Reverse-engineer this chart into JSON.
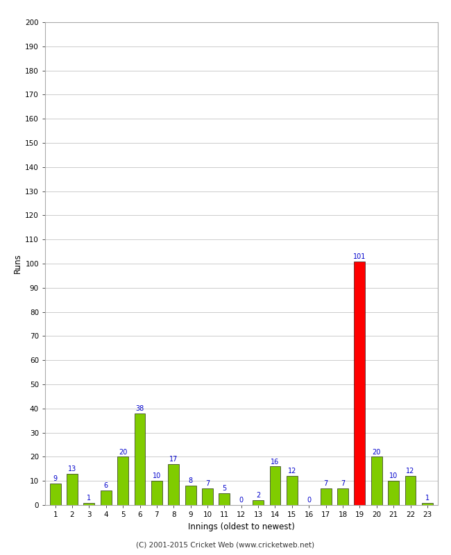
{
  "xlabel": "Innings (oldest to newest)",
  "ylabel": "Runs",
  "categories": [
    1,
    2,
    3,
    4,
    5,
    6,
    7,
    8,
    9,
    10,
    11,
    12,
    13,
    14,
    15,
    16,
    17,
    18,
    19,
    20,
    21,
    22,
    23
  ],
  "values": [
    9,
    13,
    1,
    6,
    20,
    38,
    10,
    17,
    8,
    7,
    5,
    0,
    2,
    16,
    12,
    0,
    7,
    7,
    101,
    20,
    10,
    12,
    1
  ],
  "colors": [
    "#80cc00",
    "#80cc00",
    "#80cc00",
    "#80cc00",
    "#80cc00",
    "#80cc00",
    "#80cc00",
    "#80cc00",
    "#80cc00",
    "#80cc00",
    "#80cc00",
    "#80cc00",
    "#80cc00",
    "#80cc00",
    "#80cc00",
    "#80cc00",
    "#80cc00",
    "#80cc00",
    "#ff0000",
    "#80cc00",
    "#80cc00",
    "#80cc00",
    "#80cc00"
  ],
  "ylim": [
    0,
    200
  ],
  "yticks": [
    0,
    10,
    20,
    30,
    40,
    50,
    60,
    70,
    80,
    90,
    100,
    110,
    120,
    130,
    140,
    150,
    160,
    170,
    180,
    190,
    200
  ],
  "label_color": "#0000cc",
  "background_color": "#ffffff",
  "grid_color": "#cccccc",
  "footer": "(C) 2001-2015 Cricket Web (www.cricketweb.net)",
  "bar_width": 0.65
}
